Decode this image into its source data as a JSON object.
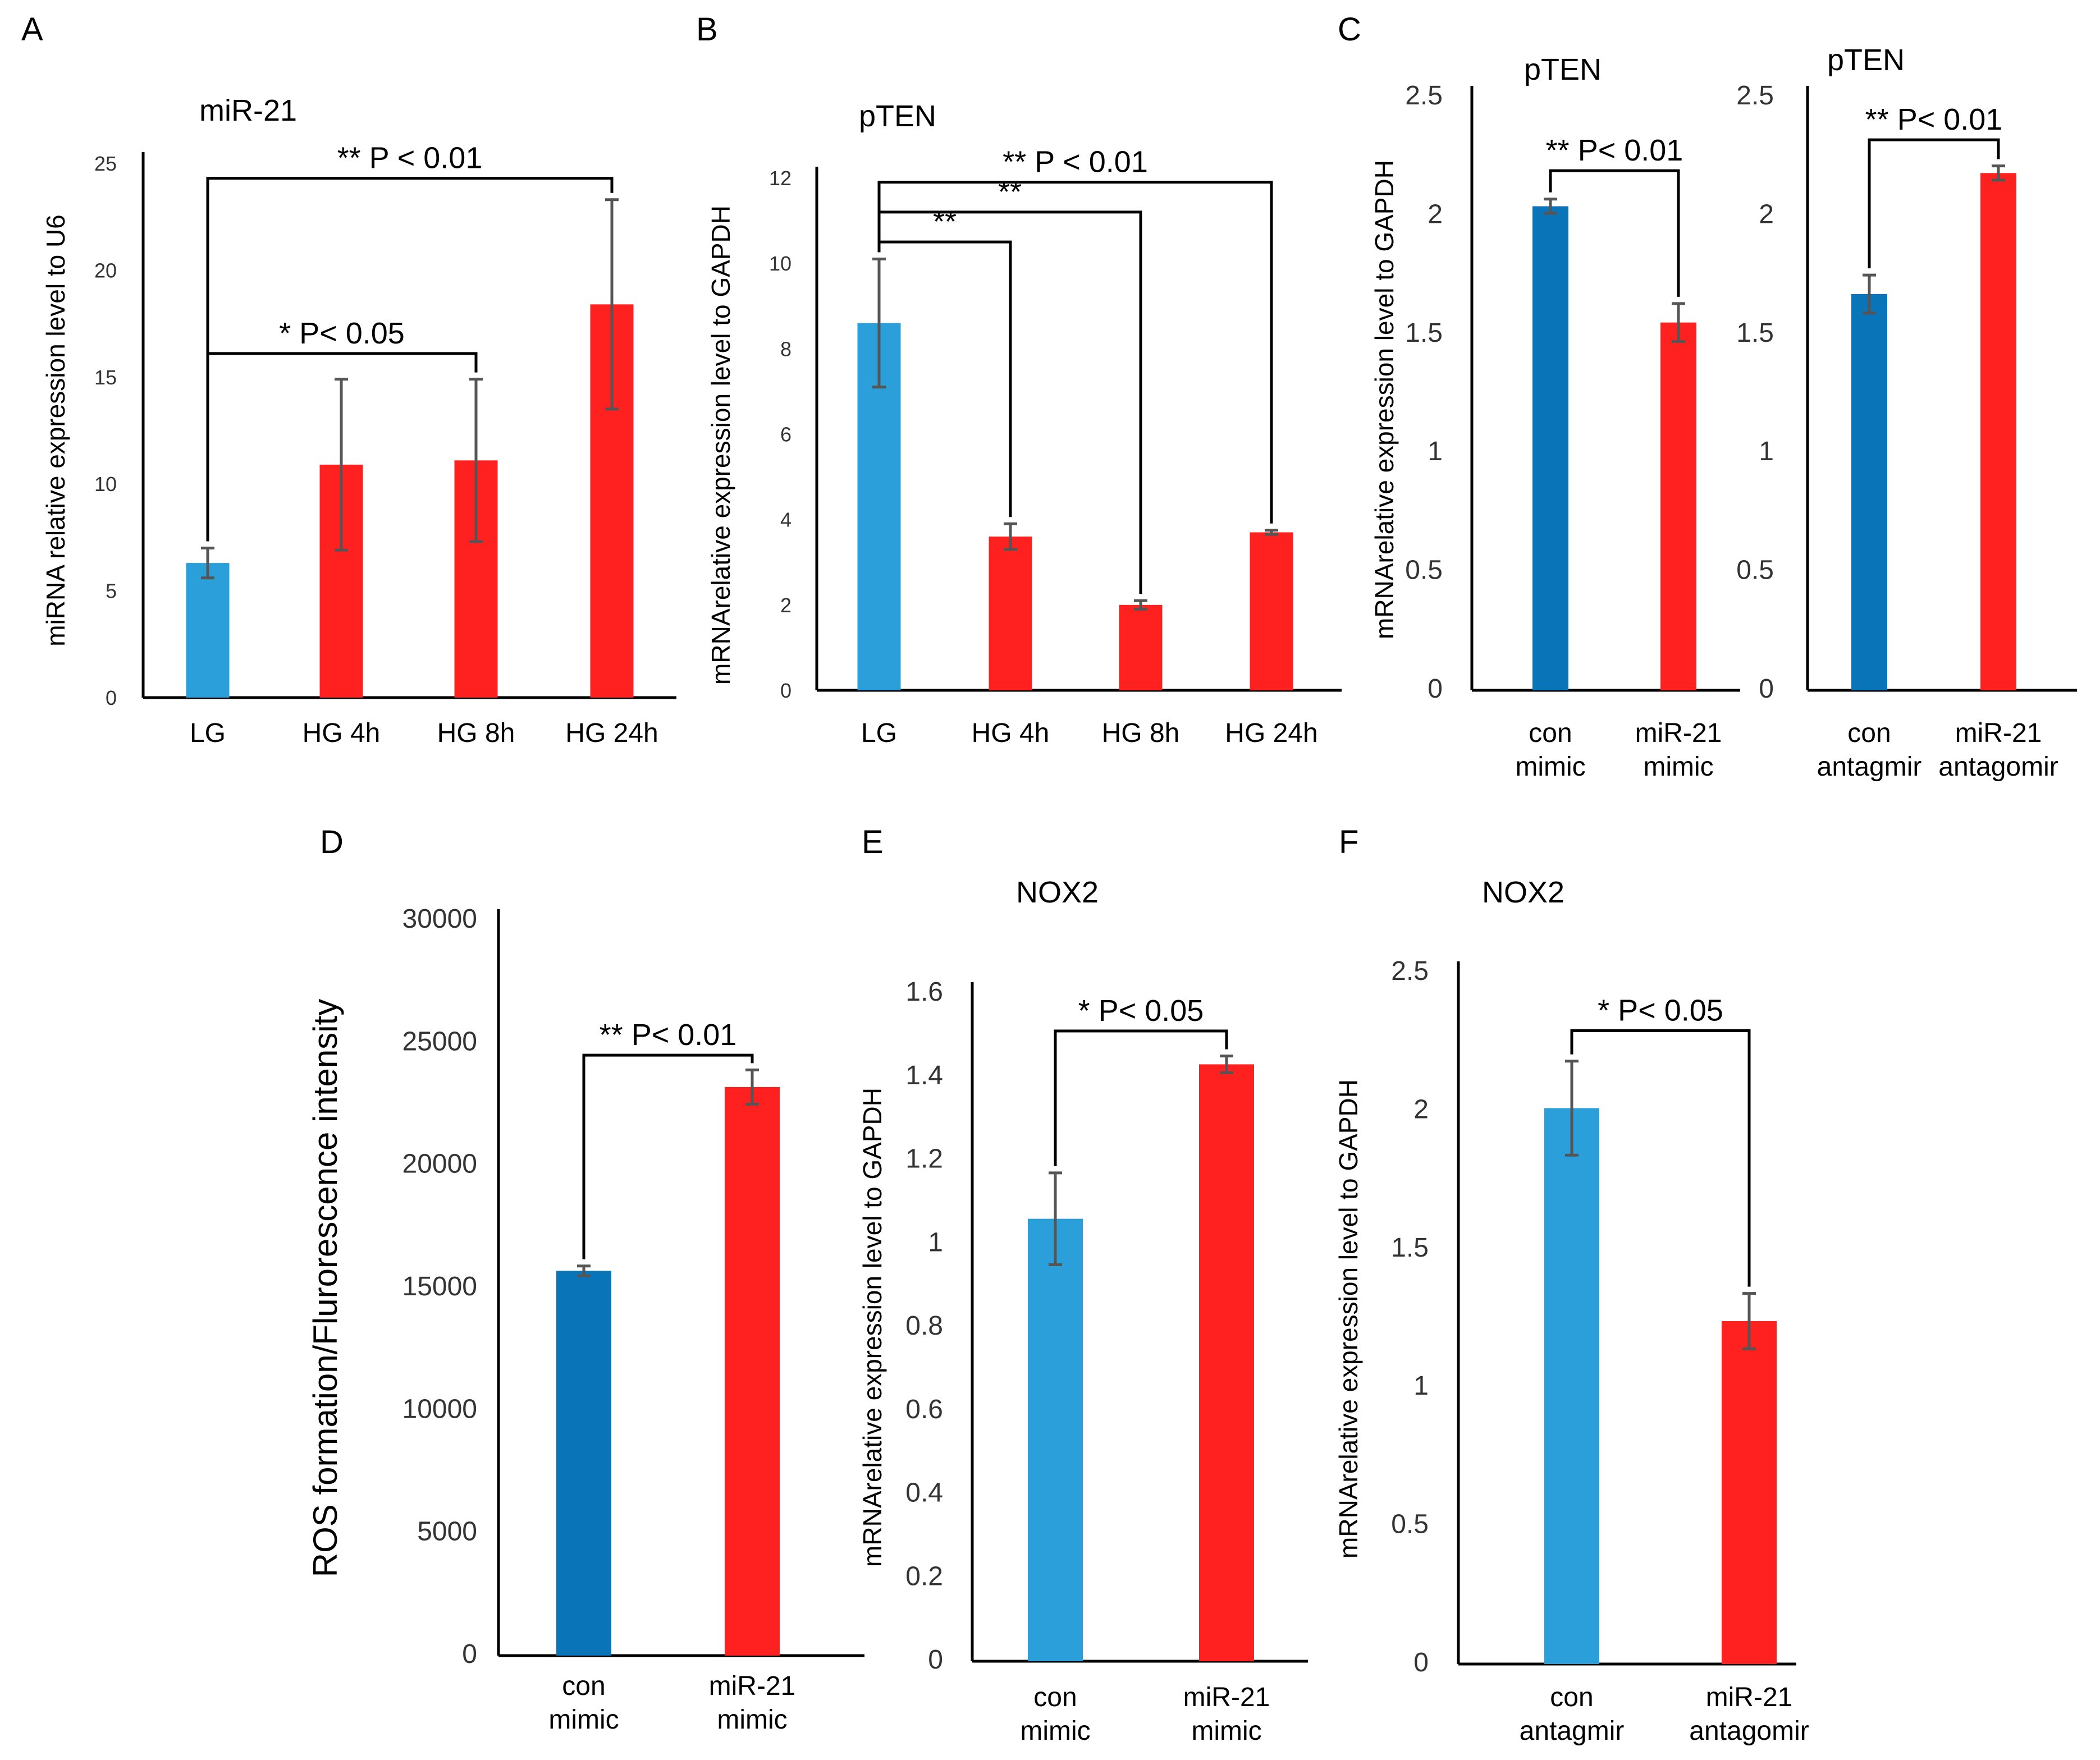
{
  "colors": {
    "blue": "#2a9fd9",
    "dark_blue": "#0a74b8",
    "red": "#ff2020",
    "error": "#555555"
  },
  "chart_data": [
    {
      "panel": "A",
      "type": "bar",
      "title": "miR-21",
      "ylabel": "miRNA relative expression level to U6",
      "xlabel": "",
      "ylim": [
        0,
        25
      ],
      "yticks": [
        "0",
        "5",
        "10",
        "15",
        "20",
        "25"
      ],
      "tick_values": [
        0,
        5,
        10,
        15,
        20,
        25
      ],
      "categories": [
        "LG",
        "HG 4h",
        "HG 8h",
        "HG 24h"
      ],
      "category_lines": [
        [
          "LG"
        ],
        [
          "HG 4h"
        ],
        [
          "HG 8h"
        ],
        [
          "HG 24h"
        ]
      ],
      "values": [
        6.3,
        10.9,
        11.1,
        18.4
      ],
      "errors": [
        0.7,
        4.0,
        3.8,
        4.9
      ],
      "bar_colors": [
        "blue",
        "red",
        "red",
        "red"
      ],
      "annotations": [
        {
          "from": 0,
          "to": 3,
          "stars": "**",
          "text": "P < 0.01",
          "level": 24.3
        },
        {
          "from": 0,
          "to": 2,
          "stars": "*",
          "text": "P< 0.05",
          "level": 16.1
        }
      ]
    },
    {
      "panel": "B",
      "type": "bar",
      "title": "pTEN",
      "ylabel": "mRNArelative expression level to GAPDH",
      "xlabel": "",
      "ylim": [
        0,
        12
      ],
      "yticks": [
        "0",
        "2",
        "4",
        "6",
        "8",
        "10",
        "12"
      ],
      "tick_values": [
        0,
        2,
        4,
        6,
        8,
        10,
        12
      ],
      "categories": [
        "LG",
        "HG 4h",
        "HG 8h",
        "HG 24h"
      ],
      "category_lines": [
        [
          "LG"
        ],
        [
          "HG 4h"
        ],
        [
          "HG 8h"
        ],
        [
          "HG 24h"
        ]
      ],
      "values": [
        8.6,
        3.6,
        2.0,
        3.7
      ],
      "errors": [
        1.5,
        0.3,
        0.1,
        0.05
      ],
      "bar_colors": [
        "blue",
        "red",
        "red",
        "red"
      ],
      "annotations": [
        {
          "from": 0,
          "to": 3,
          "stars": "**",
          "text": "P < 0.01",
          "level": 11.9
        },
        {
          "from": 0,
          "to": 2,
          "stars": "**",
          "text": "",
          "level": 11.2
        },
        {
          "from": 0,
          "to": 1,
          "stars": "**",
          "text": "",
          "level": 10.5
        }
      ]
    },
    {
      "panel": "C",
      "type": "bar",
      "title": "pTEN",
      "ylabel": "mRNArelative expression level to GAPDH",
      "xlabel": "",
      "ylim": [
        0,
        2.5
      ],
      "yticks": [
        "0",
        "0.5",
        "1",
        "1.5",
        "2",
        "2.5"
      ],
      "tick_values": [
        0,
        0.5,
        1,
        1.5,
        2,
        2.5
      ],
      "categories": [
        "con mimic",
        "miR-21 mimic"
      ],
      "category_lines": [
        [
          "con",
          "mimic"
        ],
        [
          "miR-21",
          "mimic"
        ]
      ],
      "values": [
        2.04,
        1.55
      ],
      "errors": [
        0.03,
        0.08
      ],
      "bar_colors": [
        "dark_blue",
        "red"
      ],
      "annotations": [
        {
          "from": 0,
          "to": 1,
          "stars": "**",
          "text": "P< 0.01",
          "level": 2.19
        }
      ]
    },
    {
      "panel": "",
      "type": "bar",
      "title": "pTEN",
      "ylabel": "",
      "xlabel": "",
      "ylim": [
        0,
        2.5
      ],
      "yticks": [
        "0",
        "0.5",
        "1",
        "1.5",
        "2",
        "2.5"
      ],
      "tick_values": [
        0,
        0.5,
        1,
        1.5,
        2,
        2.5
      ],
      "categories": [
        "con antagmir",
        "miR-21 antagomir"
      ],
      "category_lines": [
        [
          "con",
          "antagmir"
        ],
        [
          "miR-21",
          "antagomir"
        ]
      ],
      "values": [
        1.67,
        2.18
      ],
      "errors": [
        0.08,
        0.03
      ],
      "bar_colors": [
        "dark_blue",
        "red"
      ],
      "annotations": [
        {
          "from": 0,
          "to": 1,
          "stars": "**",
          "text": "P< 0.01",
          "level": 2.32
        }
      ]
    },
    {
      "panel": "D",
      "type": "bar",
      "title": "",
      "ylabel": "ROS formation/Flurorescence intensity",
      "xlabel": "",
      "ylim": [
        0,
        30000
      ],
      "yticks": [
        "0",
        "5000",
        "10000",
        "15000",
        "20000",
        "25000",
        "30000"
      ],
      "tick_values": [
        0,
        5000,
        10000,
        15000,
        20000,
        25000,
        30000
      ],
      "categories": [
        "con mimic",
        "miR-21 mimic"
      ],
      "category_lines": [
        [
          "con",
          "mimic"
        ],
        [
          "miR-21",
          "mimic"
        ]
      ],
      "values": [
        15700,
        23200
      ],
      "errors": [
        200,
        700
      ],
      "bar_colors": [
        "dark_blue",
        "red"
      ],
      "annotations": [
        {
          "from": 0,
          "to": 1,
          "stars": "**",
          "text": "P< 0.01",
          "level": 24500
        }
      ]
    },
    {
      "panel": "E",
      "type": "bar",
      "title": "NOX2",
      "ylabel": "mRNArelative expression level to GAPDH",
      "xlabel": "",
      "ylim": [
        0,
        1.6
      ],
      "yticks": [
        "0",
        "0.2",
        "0.4",
        "0.6",
        "0.8",
        "1",
        "1.2",
        "1.4",
        "1.6"
      ],
      "tick_values": [
        0,
        0.2,
        0.4,
        0.6,
        0.8,
        1,
        1.2,
        1.4,
        1.6
      ],
      "categories": [
        "con mimic",
        "miR-21 mimic"
      ],
      "category_lines": [
        [
          "con",
          "mimic"
        ],
        [
          "miR-21",
          "mimic"
        ]
      ],
      "values": [
        1.06,
        1.43
      ],
      "errors": [
        0.11,
        0.02
      ],
      "bar_colors": [
        "blue",
        "red"
      ],
      "annotations": [
        {
          "from": 0,
          "to": 1,
          "stars": "*",
          "text": "P< 0.05",
          "level": 1.51
        }
      ]
    },
    {
      "panel": "F",
      "type": "bar",
      "title": "NOX2",
      "ylabel": "mRNArelative expression level to GAPDH",
      "xlabel": "",
      "ylim": [
        0,
        2.5
      ],
      "yticks": [
        "0",
        "0.5",
        "1",
        "1.5",
        "2",
        "2.5"
      ],
      "tick_values": [
        0,
        0.5,
        1,
        1.5,
        2,
        2.5
      ],
      "categories": [
        "con antagmir",
        "miR-21 antagomir"
      ],
      "category_lines": [
        [
          "con",
          "antagmir"
        ],
        [
          "miR-21",
          "antagomir"
        ]
      ],
      "values": [
        2.01,
        1.24
      ],
      "errors": [
        0.17,
        0.1
      ],
      "bar_colors": [
        "blue",
        "red"
      ],
      "annotations": [
        {
          "from": 0,
          "to": 1,
          "stars": "*",
          "text": "P< 0.05",
          "level": 2.29
        }
      ]
    }
  ]
}
